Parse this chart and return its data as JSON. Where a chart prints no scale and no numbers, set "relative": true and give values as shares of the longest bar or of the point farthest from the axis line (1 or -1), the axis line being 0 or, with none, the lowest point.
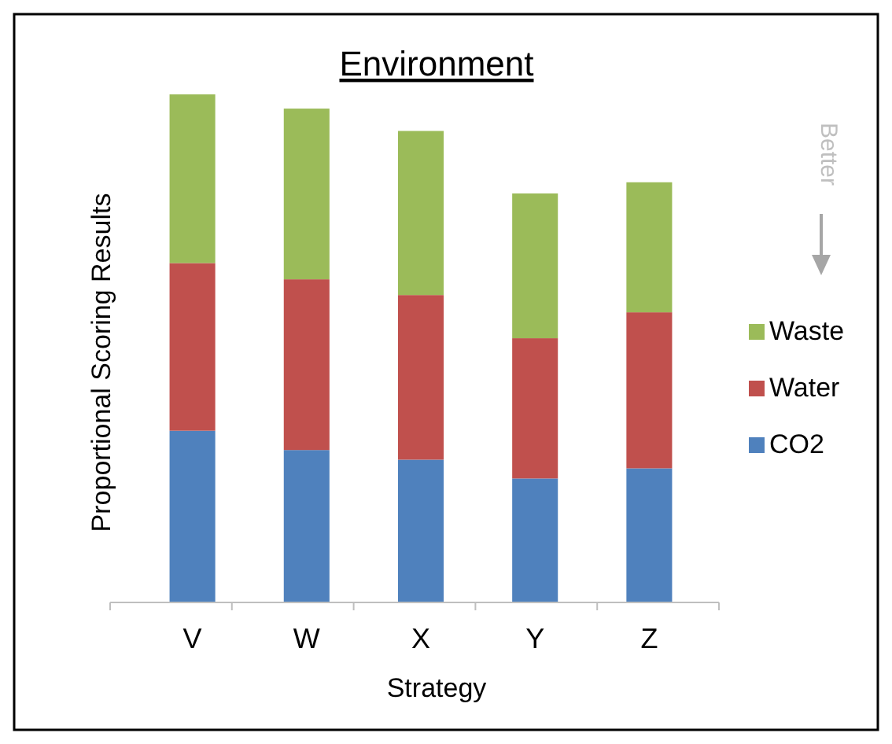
{
  "chart_data": {
    "type": "bar",
    "title": "Environment",
    "xlabel": "Strategy",
    "ylabel": "Proportional Scoring Results",
    "categories": [
      "V",
      "W",
      "X",
      "Y",
      "Z"
    ],
    "stacked": true,
    "relative": true,
    "legend": "right",
    "annotations": [
      "Better"
    ],
    "series": [
      {
        "name": "CO2",
        "color": "#4f81bd",
        "values": [
          0.338,
          0.3,
          0.281,
          0.244,
          0.264
        ]
      },
      {
        "name": "Water",
        "color": "#c0504d",
        "values": [
          0.33,
          0.336,
          0.324,
          0.276,
          0.307
        ]
      },
      {
        "name": "Waste",
        "color": "#9bbb59",
        "values": [
          0.332,
          0.336,
          0.323,
          0.285,
          0.256
        ]
      }
    ]
  }
}
